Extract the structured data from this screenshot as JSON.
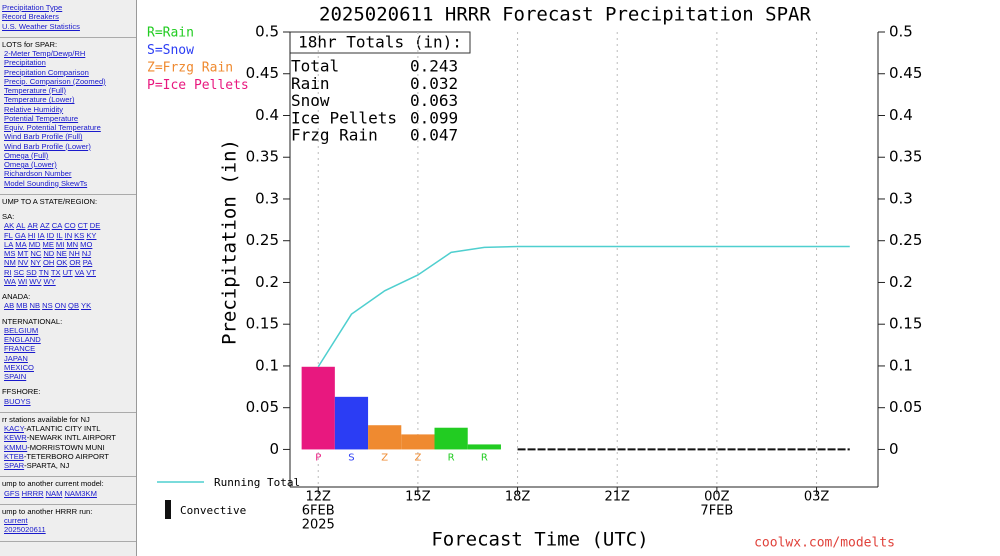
{
  "sidebar": {
    "sections": [
      [
        {
          "rows": [
            [
              "Precipitation Type"
            ],
            [
              "Record Breakers"
            ],
            [
              "U.S. Weather Statistics"
            ]
          ]
        }
      ],
      [
        {
          "heading": "LOTS for SPAR:",
          "rows": [
            [
              "2-Meter Temp/Dewp/RH"
            ],
            [
              "Precipitation"
            ],
            [
              "Precipitation Comparison"
            ],
            [
              "Precip. Comparison (Zoomed)"
            ],
            [
              "Temperature (Full)"
            ],
            [
              "Temperature (Lower)"
            ],
            [
              "Relative Humidity"
            ],
            [
              "Potential Temperature"
            ],
            [
              "Equiv. Potential Temperature"
            ],
            [
              "Wind Barb Profile (Full)"
            ],
            [
              "Wind Barb Profile (Lower)"
            ],
            [
              "Omega (Full)"
            ],
            [
              "Omega (Lower)"
            ],
            [
              "Richardson Number"
            ],
            [
              "Model Sounding SkewTs"
            ]
          ]
        }
      ],
      [
        {
          "heading": "UMP TO A STATE/REGION:"
        },
        {
          "heading": "SA:",
          "rows": [
            [
              "AK",
              "AL",
              "AR",
              "AZ",
              "CA",
              "CO",
              "CT",
              "DE"
            ],
            [
              "FL",
              "GA",
              "HI",
              "IA",
              "ID",
              "IL",
              "IN",
              "KS",
              "KY"
            ],
            [
              "LA",
              "MA",
              "MD",
              "ME",
              "MI",
              "MN",
              "MO"
            ],
            [
              "MS",
              "MT",
              "NC",
              "ND",
              "NE",
              "NH",
              "NJ"
            ],
            [
              "NM",
              "NV",
              "NY",
              "OH",
              "OK",
              "OR",
              "PA"
            ],
            [
              "RI",
              "SC",
              "SD",
              "TN",
              "TX",
              "UT",
              "VA",
              "VT"
            ],
            [
              "WA",
              "WI",
              "WV",
              "WY"
            ]
          ]
        },
        {
          "heading": "ANADA:",
          "rows": [
            [
              "AB",
              "MB",
              "NB",
              "NS",
              "ON",
              "QB",
              "YK"
            ]
          ]
        },
        {
          "heading": "NTERNATIONAL:",
          "rows": [
            [
              "BELGIUM"
            ],
            [
              "ENGLAND"
            ],
            [
              "FRANCE"
            ],
            [
              "JAPAN"
            ],
            [
              "MEXICO"
            ],
            [
              "SPAIN"
            ]
          ]
        },
        {
          "heading": "FFSHORE:",
          "rows": [
            [
              "BUOYS"
            ]
          ]
        }
      ],
      [
        {
          "heading": "rr stations available for NJ",
          "stations": [
            {
              "code": "KACY",
              "name": "-ATLANTIC CITY INTL"
            },
            {
              "code": "KEWR",
              "name": "-NEWARK INTL AIRPORT"
            },
            {
              "code": "KMMU",
              "name": "-MORRISTOWN MUNI"
            },
            {
              "code": "KTEB",
              "name": "-TETERBORO AIRPORT"
            },
            {
              "code": "SPAR",
              "name": "-SPARTA, NJ"
            }
          ]
        }
      ],
      [
        {
          "heading": "ump to another current model:",
          "rows": [
            [
              "GFS",
              "HRRR",
              "NAM",
              "NAM3KM"
            ]
          ]
        }
      ],
      [
        {
          "heading": "ump to another HRRR run:",
          "rows": [
            [
              "current"
            ],
            [
              "2025020611"
            ]
          ]
        }
      ]
    ]
  },
  "chart_data": {
    "type": "bar",
    "title": "2025020611 HRRR Forecast Precipitation SPAR",
    "y_label": "Precipitation (in)",
    "x_label": "Forecast Time (UTC)",
    "credit": "coolwx.com/modelts",
    "xlim": [
      -0.85,
      16.85
    ],
    "xticks": [
      {
        "value": 0,
        "label": "12Z"
      },
      {
        "value": 3,
        "label": "15Z"
      },
      {
        "value": 6,
        "label": "18Z"
      },
      {
        "value": 9,
        "label": "21Z"
      },
      {
        "value": 12,
        "label": "00Z"
      },
      {
        "value": 15,
        "label": "03Z"
      }
    ],
    "x_date_labels": [
      {
        "value": 0,
        "lines": [
          "6FEB",
          "2025"
        ]
      },
      {
        "value": 12,
        "lines": [
          "7FEB"
        ]
      }
    ],
    "ylim": [
      -0.045,
      0.5
    ],
    "yticks": [
      0,
      0.05,
      0.1,
      0.15,
      0.2,
      0.25,
      0.3,
      0.35,
      0.4,
      0.45,
      0.5
    ],
    "y2lim": [
      -0.045,
      0.5
    ],
    "y2ticks": [
      0,
      0.05,
      0.1,
      0.15,
      0.2,
      0.25,
      0.3,
      0.35,
      0.4,
      0.45,
      0.5
    ],
    "grid": true,
    "bars": {
      "x": [
        0,
        1,
        2,
        3,
        4,
        5
      ],
      "values": [
        0.099,
        0.063,
        0.029,
        0.018,
        0.026,
        0.006
      ],
      "labels": [
        "P",
        "S",
        "Z",
        "Z",
        "R",
        "R"
      ],
      "colors": [
        "#e8187f",
        "#2b3df4",
        "#ef8a30",
        "#ef8a30",
        "#22cc22",
        "#22cc22"
      ]
    },
    "series": [
      {
        "name": "Running Total",
        "color": "#4fcfcf",
        "x": [
          0,
          1,
          2,
          3,
          4,
          5,
          6,
          7,
          8,
          9,
          10,
          11,
          12,
          13,
          14,
          15,
          16
        ],
        "values": [
          0.099,
          0.162,
          0.19,
          0.209,
          0.236,
          0.242,
          0.243,
          0.243,
          0.243,
          0.243,
          0.243,
          0.243,
          0.243,
          0.243,
          0.243,
          0.243,
          0.243
        ]
      },
      {
        "name": "Convective",
        "color": "#111111",
        "x": [
          6,
          7,
          8,
          9,
          10,
          11,
          12,
          13,
          14,
          15,
          16
        ],
        "values": [
          0,
          0,
          0,
          0,
          0,
          0,
          0,
          0,
          0,
          0,
          0
        ]
      }
    ],
    "type_legend": [
      {
        "label": "R=Rain",
        "color": "#22cc22"
      },
      {
        "label": "S=Snow",
        "color": "#2b3df4"
      },
      {
        "label": "Z=Frzg Rain",
        "color": "#ef8a30"
      },
      {
        "label": "P=Ice Pellets",
        "color": "#e8187f"
      }
    ],
    "totals": {
      "heading": "18hr Totals (in):",
      "rows": [
        [
          "Total",
          "0.243"
        ],
        [
          "Rain",
          "0.032"
        ],
        [
          "Snow",
          "0.063"
        ],
        [
          "Ice Pellets",
          "0.099"
        ],
        [
          "Frzg Rain",
          "0.047"
        ]
      ]
    }
  }
}
